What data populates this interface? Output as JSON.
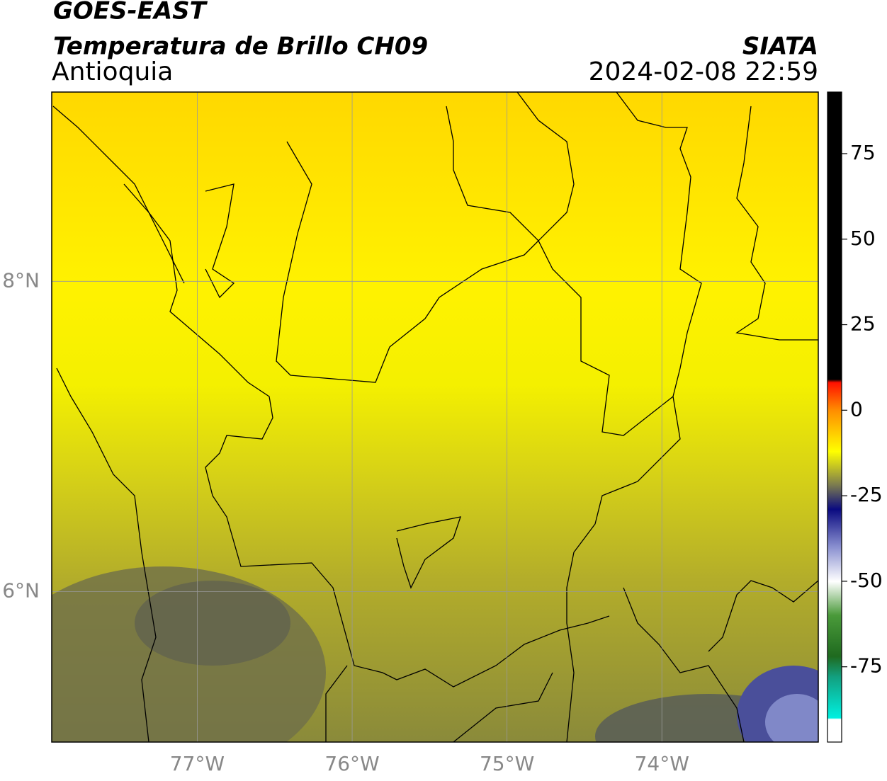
{
  "header": {
    "title": "GOES-EAST",
    "subtitle": "Temperatura de Brillo CH09",
    "region": "Antioquia",
    "source": "SIATA",
    "timestamp": "2024-02-08 22:59"
  },
  "map": {
    "lon_range": [
      -77.94,
      -72.99
    ],
    "lat_range": [
      5.03,
      9.22
    ],
    "lon_ticks": [
      {
        "value": -77,
        "label": "77°W"
      },
      {
        "value": -76,
        "label": "76°W"
      },
      {
        "value": -75,
        "label": "75°W"
      },
      {
        "value": -74,
        "label": "74°W"
      }
    ],
    "lat_ticks": [
      {
        "value": 8,
        "label": "8°N"
      },
      {
        "value": 6,
        "label": "6°N"
      }
    ],
    "grid": true
  },
  "colorbar": {
    "lim": [
      -97,
      93
    ],
    "ticks": [
      75,
      50,
      25,
      0,
      -25,
      -50,
      -75
    ]
  }
}
